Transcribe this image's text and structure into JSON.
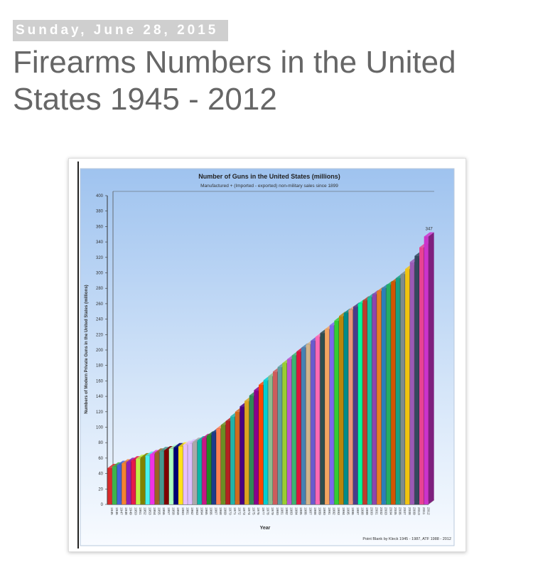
{
  "post": {
    "date": "Sunday, June 28, 2015",
    "title": "Firearms Numbers in the United States 1945 - 2012"
  },
  "chart_data": {
    "type": "bar",
    "title": "Number of Guns in the United States (millions)",
    "subtitle": "Manufactured + (Imported - exported) non-military sales since 1899",
    "xlabel": "Year",
    "ylabel": "Numbers of Modern Private Guns in the United States (millions)",
    "source": "Point Blank by Kleck 1945 - 1987, ATF 1988 - 2012",
    "ylim": [
      0,
      400
    ],
    "yticks": [
      0,
      20,
      40,
      60,
      80,
      100,
      120,
      140,
      160,
      180,
      200,
      220,
      240,
      260,
      280,
      300,
      320,
      340,
      360,
      380,
      400
    ],
    "grid": false,
    "categories": [
      "1945",
      "1946",
      "1947",
      "1948",
      "1949",
      "1950",
      "1951",
      "1952",
      "1953",
      "1954",
      "1955",
      "1956",
      "1957",
      "1958",
      "1959",
      "1960",
      "1961",
      "1962",
      "1963",
      "1964",
      "1965",
      "1966",
      "1967",
      "1968",
      "1969",
      "1970",
      "1971",
      "1972",
      "1973",
      "1974",
      "1975",
      "1976",
      "1977",
      "1978",
      "1979",
      "1980",
      "1981",
      "1982",
      "1983",
      "1984",
      "1985",
      "1986",
      "1987",
      "1988",
      "1989",
      "1990",
      "1991",
      "1992",
      "1993",
      "1994",
      "1995",
      "1996",
      "1997",
      "1998",
      "1999",
      "2000",
      "2001",
      "2002",
      "2003",
      "2004",
      "2005",
      "2006",
      "2007",
      "2008",
      "2009",
      "2010",
      "2011",
      "2012"
    ],
    "values": [
      47,
      49,
      51,
      53,
      55,
      57,
      59,
      61,
      63,
      65,
      67,
      69,
      70,
      72,
      74,
      75,
      77,
      79,
      81,
      83,
      86,
      89,
      93,
      98,
      103,
      108,
      114,
      120,
      127,
      134,
      141,
      148,
      155,
      161,
      166,
      172,
      178,
      183,
      188,
      193,
      198,
      203,
      207,
      212,
      217,
      222,
      227,
      232,
      238,
      244,
      248,
      252,
      256,
      260,
      264,
      268,
      272,
      276,
      280,
      284,
      288,
      293,
      298,
      305,
      314,
      322,
      333,
      347
    ],
    "data_label_shown": "347",
    "bar_colors": [
      "#d92b2b",
      "#3cb44b",
      "#4363d8",
      "#f58231",
      "#911eb4",
      "#e6194b",
      "#bfef45",
      "#808000",
      "#46f0f0",
      "#f032e6",
      "#9a6324",
      "#469990",
      "#800000",
      "#aaffc3",
      "#000075",
      "#ffe119",
      "#e6beff",
      "#dcbeff",
      "#a9a9a9",
      "#0bb5a8",
      "#c71585",
      "#228b22",
      "#1e3a8a",
      "#ff7f50",
      "#6b8e23",
      "#b22222",
      "#20b2aa",
      "#d2691e",
      "#4b0082",
      "#daa520",
      "#2e8b57",
      "#8b008b",
      "#ff4500",
      "#00ced1",
      "#8fbc8f",
      "#cd5c5c",
      "#5f9ea0",
      "#9acd32",
      "#ba55d3",
      "#3cb371",
      "#dc143c",
      "#4682b4",
      "#d2b48c",
      "#6a5acd",
      "#ff69b4",
      "#2f4f4f",
      "#f4a460",
      "#7b68ee",
      "#32cd32",
      "#b8860b",
      "#008b8b",
      "#e9967a",
      "#483d8b",
      "#00fa9a",
      "#c0392b",
      "#1abc9c",
      "#8e44ad",
      "#e67e22",
      "#2980b9",
      "#27ae60",
      "#d35400",
      "#16a085",
      "#7f8c8d",
      "#f1c40f",
      "#9b59b6",
      "#34495e",
      "#e84393",
      "#cc33cc"
    ]
  }
}
